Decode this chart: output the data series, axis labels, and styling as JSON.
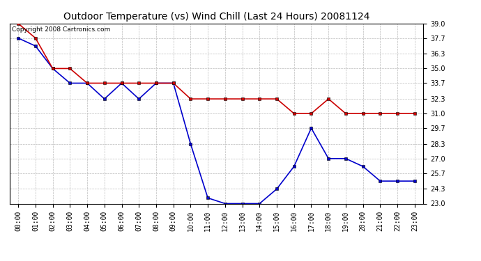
{
  "title": "Outdoor Temperature (vs) Wind Chill (Last 24 Hours) 20081124",
  "copyright_text": "Copyright 2008 Cartronics.com",
  "hours": [
    0,
    1,
    2,
    3,
    4,
    5,
    6,
    7,
    8,
    9,
    10,
    11,
    12,
    13,
    14,
    15,
    16,
    17,
    18,
    19,
    20,
    21,
    22,
    23
  ],
  "temp": [
    37.7,
    37.0,
    35.0,
    33.7,
    33.7,
    32.3,
    33.7,
    32.3,
    33.7,
    33.7,
    28.3,
    23.5,
    23.0,
    23.0,
    23.0,
    24.3,
    26.3,
    29.7,
    27.0,
    27.0,
    26.3,
    25.0,
    25.0,
    25.0
  ],
  "wind_chill": [
    39.0,
    37.7,
    35.0,
    35.0,
    33.7,
    33.7,
    33.7,
    33.7,
    33.7,
    33.7,
    32.3,
    32.3,
    32.3,
    32.3,
    32.3,
    32.3,
    31.0,
    31.0,
    32.3,
    31.0,
    31.0,
    31.0,
    31.0,
    31.0
  ],
  "ylim": [
    23.0,
    39.0
  ],
  "yticks": [
    23.0,
    24.3,
    25.7,
    27.0,
    28.3,
    29.7,
    31.0,
    32.3,
    33.7,
    35.0,
    36.3,
    37.7,
    39.0
  ],
  "temp_color": "#0000CC",
  "wind_chill_color": "#CC0000",
  "bg_color": "#FFFFFF",
  "grid_color": "#BBBBBB",
  "marker": "s",
  "marker_size": 3,
  "line_width": 1.2,
  "title_fontsize": 10,
  "tick_fontsize": 7,
  "copyright_fontsize": 6.5
}
